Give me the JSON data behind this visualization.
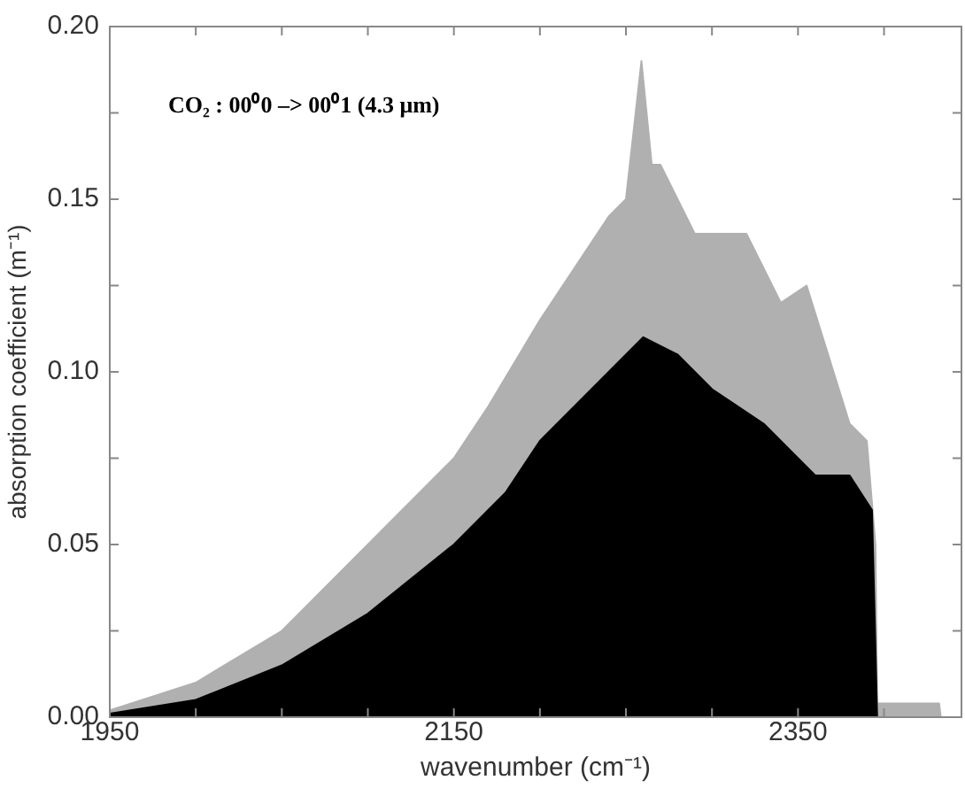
{
  "chart_data": {
    "type": "area",
    "xlabel": "wavenumber (cm⁻¹)",
    "ylabel": "absorption coefficient (m⁻¹)",
    "annotations": [
      "CO₂ : 00⁰0 –> 00⁰1 (4.3 μm)"
    ],
    "xlim": [
      1950,
      2445
    ],
    "xticks": [
      {
        "value": 1950,
        "label": "1950"
      },
      {
        "value": 2000,
        "label": null
      },
      {
        "value": 2050,
        "label": null
      },
      {
        "value": 2100,
        "label": null
      },
      {
        "value": 2150,
        "label": "2150"
      },
      {
        "value": 2200,
        "label": null
      },
      {
        "value": 2250,
        "label": null
      },
      {
        "value": 2300,
        "label": null
      },
      {
        "value": 2350,
        "label": "2350"
      },
      {
        "value": 2400,
        "label": null
      }
    ],
    "ylim": [
      0,
      0.2
    ],
    "yticks": [
      {
        "value": 0,
        "label": "0.00"
      },
      {
        "value": 0.025,
        "label": null
      },
      {
        "value": 0.05,
        "label": "0.05"
      },
      {
        "value": 0.075,
        "label": null
      },
      {
        "value": 0.1,
        "label": "0.10"
      },
      {
        "value": 0.125,
        "label": null
      },
      {
        "value": 0.15,
        "label": "0.15"
      },
      {
        "value": 0.175,
        "label": null
      },
      {
        "value": 0.2,
        "label": "0.20"
      }
    ],
    "grid": false,
    "legend": false,
    "series": [
      {
        "color": "#b0b0b0",
        "x": [
          1950,
          2000,
          2050,
          2080,
          2100,
          2130,
          2150,
          2170,
          2200,
          2220,
          2240,
          2250,
          2259,
          2265,
          2270,
          2290,
          2320,
          2340,
          2355,
          2380,
          2390,
          2395,
          2396,
          2432,
          2433
        ],
        "values": [
          0.002,
          0.01,
          0.025,
          0.04,
          0.05,
          0.065,
          0.075,
          0.09,
          0.115,
          0.13,
          0.145,
          0.15,
          0.19,
          0.16,
          0.16,
          0.14,
          0.14,
          0.12,
          0.125,
          0.085,
          0.08,
          0.05,
          0.004,
          0.004,
          0
        ]
      },
      {
        "color": "#000000",
        "x": [
          1950,
          2000,
          2050,
          2100,
          2150,
          2180,
          2200,
          2230,
          2260,
          2280,
          2300,
          2330,
          2360,
          2380,
          2393,
          2396
        ],
        "values": [
          0.001,
          0.005,
          0.015,
          0.03,
          0.05,
          0.065,
          0.08,
          0.095,
          0.11,
          0.105,
          0.095,
          0.085,
          0.07,
          0.07,
          0.06,
          0
        ]
      }
    ]
  }
}
